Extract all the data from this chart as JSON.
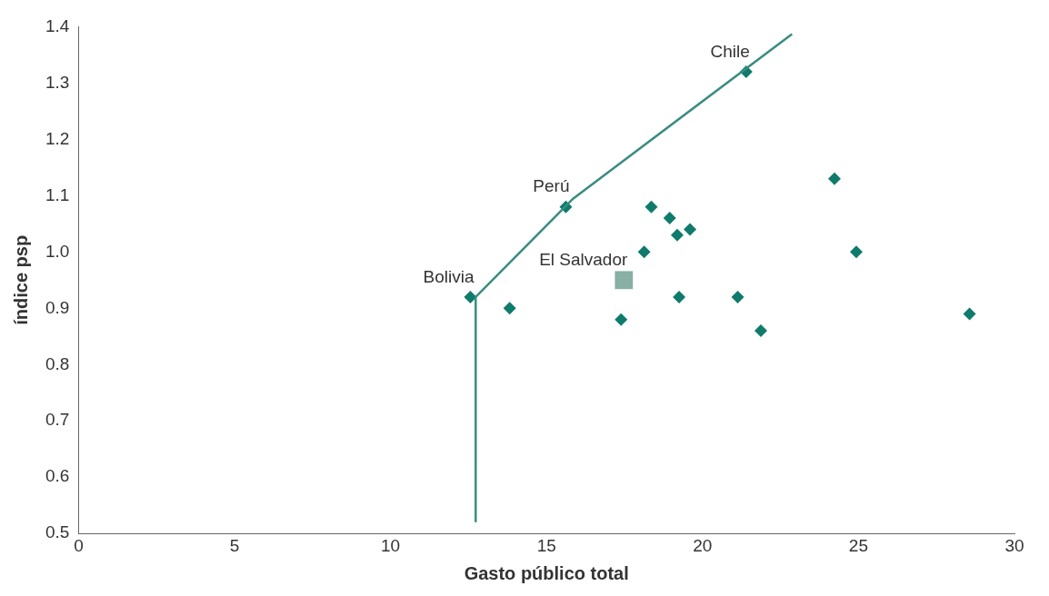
{
  "chart_data": {
    "type": "scatter",
    "xlabel": "Gasto público total",
    "ylabel": "índice psp",
    "xlim": [
      0,
      30
    ],
    "xticks": [
      0,
      5,
      10,
      15,
      20,
      25,
      30
    ],
    "ylim": [
      0.5,
      1.4
    ],
    "yticks": [
      0.5,
      0.6,
      0.7,
      0.8,
      0.9,
      {
        "value": 1,
        "label": "1.0"
      },
      1.1,
      1.2,
      1.3,
      1.4
    ],
    "grid": false,
    "legend": false,
    "series": [
      {
        "type": "line",
        "color": "#3a8c80",
        "marker": "none",
        "line_style": "solid",
        "x": [
          12.73,
          12.73,
          15.86,
          22.87
        ],
        "values": [
          0.52,
          0.92,
          1.095,
          1.387
        ]
      },
      {
        "type": "scatter",
        "color": "#0f7b6c",
        "marker": "diamond",
        "x": [
          12.56,
          15.62,
          21.4,
          13.82,
          17.39,
          18.13,
          18.36,
          18.95,
          19.19,
          19.6,
          19.25,
          21.13,
          21.87,
          24.23,
          24.93,
          28.56
        ],
        "values": [
          0.92,
          1.08,
          1.32,
          0.9,
          0.88,
          1.0,
          1.08,
          1.06,
          1.03,
          1.04,
          0.92,
          0.92,
          0.86,
          1.13,
          1.0,
          0.89
        ]
      },
      {
        "type": "scatter",
        "color": "#88b0a4",
        "marker": "square",
        "x": [
          17.48
        ],
        "values": [
          0.95
        ]
      }
    ],
    "annotations": [
      {
        "text": "Chile",
        "x": 21.4,
        "y": 1.32
      },
      {
        "text": "Perú",
        "x": 15.62,
        "y": 1.08
      },
      {
        "text": "Bolivia",
        "x": 12.56,
        "y": 0.92
      },
      {
        "text": "El Salvador",
        "x": 17.48,
        "y": 0.95
      }
    ]
  }
}
